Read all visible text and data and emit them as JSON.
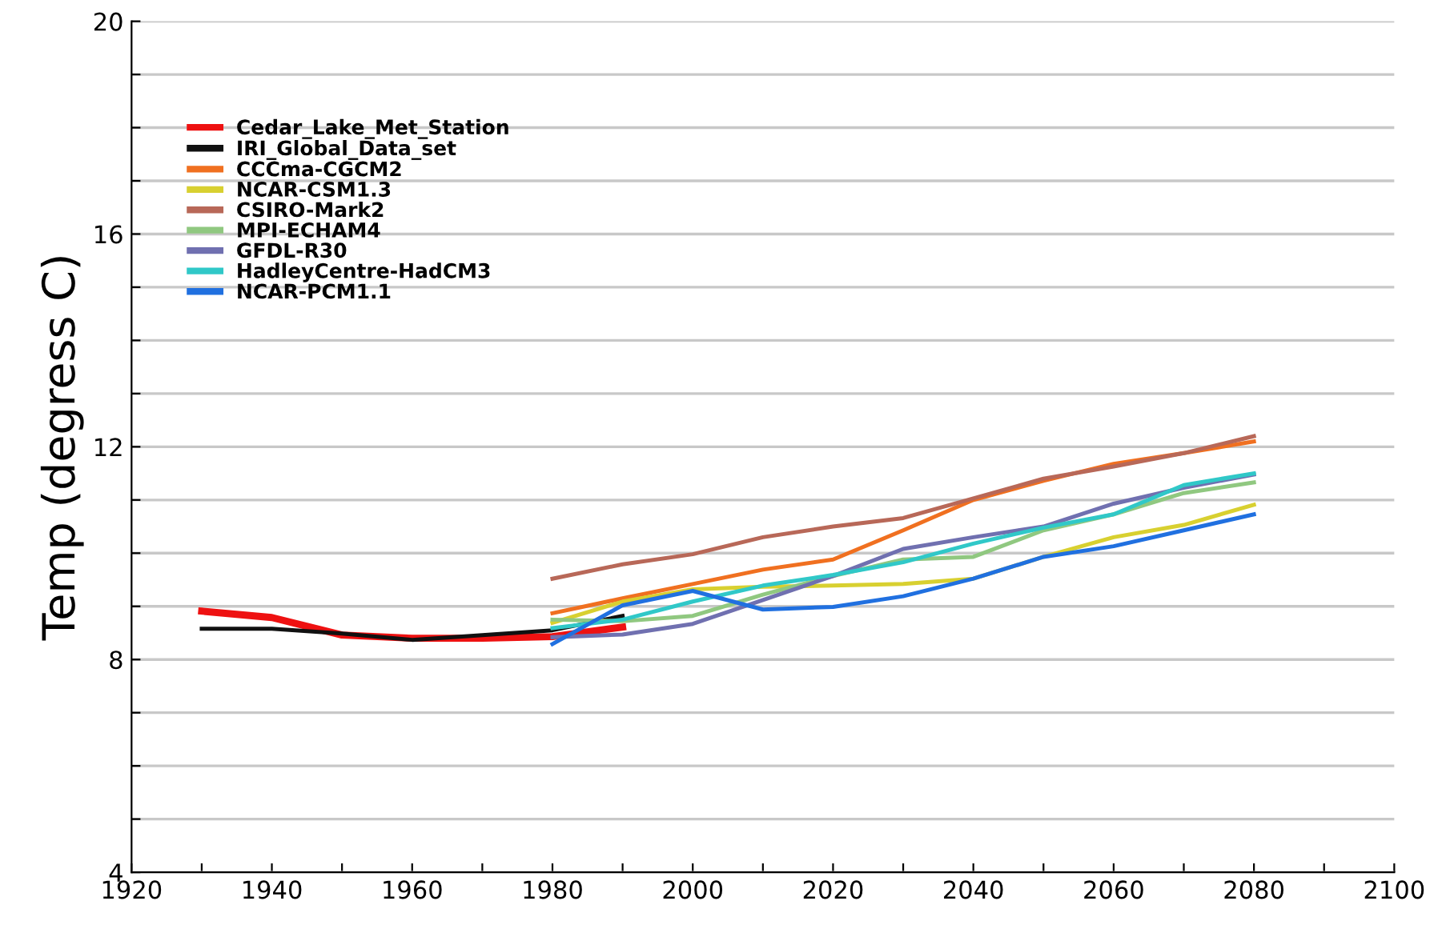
{
  "chart_data": {
    "type": "line",
    "ylabel": "Temp (degress C)",
    "xlim": [
      1920,
      2100
    ],
    "xticks": [
      1920,
      {
        "value": 1930,
        "label": null
      },
      1940,
      {
        "value": 1950,
        "label": null
      },
      1960,
      {
        "value": 1970,
        "label": null
      },
      1980,
      {
        "value": 1990,
        "label": null
      },
      2000,
      {
        "value": 2010,
        "label": null
      },
      2020,
      {
        "value": 2030,
        "label": null
      },
      2040,
      {
        "value": 2050,
        "label": null
      },
      2060,
      {
        "value": 2070,
        "label": null
      },
      2080,
      {
        "value": 2090,
        "label": null
      },
      2100
    ],
    "ylim": [
      4,
      20
    ],
    "yticks": [
      4,
      {
        "value": 5,
        "label": null
      },
      {
        "value": 6,
        "label": null
      },
      {
        "value": 7,
        "label": null
      },
      8,
      {
        "value": 9,
        "label": null
      },
      {
        "value": 10,
        "label": null
      },
      {
        "value": 11,
        "label": null
      },
      12,
      {
        "value": 13,
        "label": null
      },
      {
        "value": 14,
        "label": null
      },
      {
        "value": 15,
        "label": null
      },
      16,
      {
        "value": 17,
        "label": null
      },
      {
        "value": 18,
        "label": null
      },
      {
        "value": 19,
        "label": null
      },
      20
    ],
    "grid": "y",
    "legend": "top left",
    "marker": "none",
    "line_style": "solid",
    "series": [
      {
        "name": "Cedar_Lake_Met_Station",
        "color": "#ee1111",
        "x": [
          1930,
          1940,
          1950,
          1960,
          1970,
          1980,
          1990
        ],
        "values": [
          8.91,
          8.79,
          8.46,
          8.4,
          8.4,
          8.43,
          8.61
        ]
      },
      {
        "name": "IRI_Global_Data_set",
        "color": "#111111",
        "x": [
          1930,
          1940,
          1950,
          1960,
          1970,
          1980,
          1990
        ],
        "values": [
          8.58,
          8.58,
          8.49,
          8.37,
          8.46,
          8.55,
          8.82
        ]
      },
      {
        "name": "CCCma-CGCM2",
        "color": "#f07020",
        "x": [
          1980,
          1990,
          2000,
          2010,
          2020,
          2030,
          2040,
          2050,
          2060,
          2070,
          2080
        ],
        "values": [
          8.87,
          9.15,
          9.42,
          9.69,
          9.88,
          10.43,
          11.0,
          11.36,
          11.68,
          11.88,
          12.1
        ]
      },
      {
        "name": "NCAR-CSM1.3",
        "color": "#d8d030",
        "x": [
          1980,
          1990,
          2000,
          2010,
          2020,
          2030,
          2040,
          2050,
          2060,
          2070,
          2080
        ],
        "values": [
          8.69,
          9.09,
          9.32,
          9.37,
          9.39,
          9.42,
          9.52,
          9.93,
          10.3,
          10.53,
          10.91
        ]
      },
      {
        "name": "CSIRO-Mark2",
        "color": "#b86858",
        "x": [
          1980,
          1990,
          2000,
          2010,
          2020,
          2030,
          2040,
          2050,
          2060,
          2070,
          2080
        ],
        "values": [
          9.52,
          9.79,
          9.98,
          10.3,
          10.5,
          10.66,
          11.03,
          11.4,
          11.63,
          11.88,
          12.2
        ]
      },
      {
        "name": "MPI-ECHAM4",
        "color": "#90c880",
        "x": [
          1980,
          1990,
          2000,
          2010,
          2020,
          2030,
          2040,
          2050,
          2060,
          2070,
          2080
        ],
        "values": [
          8.75,
          8.72,
          8.82,
          9.22,
          9.57,
          9.88,
          9.93,
          10.43,
          10.73,
          11.13,
          11.33
        ]
      },
      {
        "name": "GFDL-R30",
        "color": "#7070b0",
        "x": [
          1980,
          1990,
          2000,
          2010,
          2020,
          2030,
          2040,
          2050,
          2060,
          2070,
          2080
        ],
        "values": [
          8.42,
          8.47,
          8.67,
          9.12,
          9.57,
          10.08,
          10.3,
          10.5,
          10.93,
          11.23,
          11.48
        ]
      },
      {
        "name": "HadleyCentre-HadCM3",
        "color": "#30c8c8",
        "x": [
          1980,
          1990,
          2000,
          2010,
          2020,
          2030,
          2040,
          2050,
          2060,
          2070,
          2080
        ],
        "values": [
          8.59,
          8.75,
          9.09,
          9.39,
          9.59,
          9.83,
          10.18,
          10.48,
          10.73,
          11.28,
          11.5
        ]
      },
      {
        "name": "NCAR-PCM1.1",
        "color": "#2070e0",
        "x": [
          1980,
          1990,
          2000,
          2010,
          2020,
          2030,
          2040,
          2050,
          2060,
          2070,
          2080
        ],
        "values": [
          8.29,
          9.02,
          9.29,
          8.94,
          8.99,
          9.19,
          9.52,
          9.93,
          10.13,
          10.43,
          10.73
        ]
      }
    ]
  }
}
